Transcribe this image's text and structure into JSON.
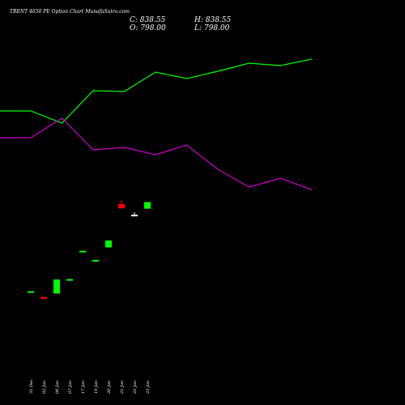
{
  "title": "TRENT 4650  PE Option  Chart MunafaSutra.com",
  "ohlc": {
    "close_label": "C: 838.55",
    "open_label": "O: 798.00",
    "high_label": "H: 838.55",
    "low_label": "L: 798.00"
  },
  "chart_data": {
    "type": "candlestick",
    "categories": [
      "31 Dec",
      "02 Jan",
      "06 Jan",
      "07 Jan",
      "17 Jan",
      "19 Jan",
      "20 Jan",
      "21 Jan",
      "22 Jan",
      "23 Jan"
    ],
    "candles": [
      {
        "open": 290,
        "high": 290,
        "low": 290,
        "close": 290,
        "color": "#00ff00"
      },
      {
        "open": 255,
        "high": 255,
        "low": 242,
        "close": 244,
        "color": "#ff0000"
      },
      {
        "open": 276,
        "high": 362,
        "low": 276,
        "close": 362,
        "color": "#00ff00"
      },
      {
        "open": 365,
        "high": 365,
        "low": 365,
        "close": 365,
        "color": "#00ff00"
      },
      {
        "open": 539,
        "high": 539,
        "low": 539,
        "close": 539,
        "color": "#00ff00"
      },
      {
        "open": 483,
        "high": 483,
        "low": 483,
        "close": 483,
        "color": "#00ff00"
      },
      {
        "open": 560,
        "high": 603,
        "low": 560,
        "close": 603,
        "color": "#00ff00"
      },
      {
        "open": 827,
        "high": 850,
        "low": 800,
        "close": 800,
        "color": "#ff0000"
      },
      {
        "open": 761,
        "high": 776,
        "low": 761,
        "close": 761,
        "color": "#ffffff"
      },
      {
        "open": 798,
        "high": 838.55,
        "low": 798,
        "close": 838.55,
        "color": "#00ff00"
      }
    ],
    "lines": [
      {
        "color": "#00ff00",
        "points": [
          {
            "x": -1,
            "y": 137
          },
          {
            "x": 0,
            "y": 137
          },
          {
            "x": 1,
            "y": 152
          },
          {
            "x": 2,
            "y": 112
          },
          {
            "x": 3,
            "y": 113
          },
          {
            "x": 4,
            "y": 89
          },
          {
            "x": 5,
            "y": 97
          },
          {
            "x": 6,
            "y": 88
          },
          {
            "x": 7,
            "y": 78
          },
          {
            "x": 8,
            "y": 81
          },
          {
            "x": 9,
            "y": 73
          }
        ]
      },
      {
        "color": "#cc00cc",
        "points": [
          {
            "x": -1,
            "y": 170
          },
          {
            "x": 0,
            "y": 170
          },
          {
            "x": 1,
            "y": 146
          },
          {
            "x": 2,
            "y": 185
          },
          {
            "x": 3,
            "y": 182
          },
          {
            "x": 4,
            "y": 191
          },
          {
            "x": 5,
            "y": 179
          },
          {
            "x": 6,
            "y": 209
          },
          {
            "x": 7,
            "y": 231
          },
          {
            "x": 8,
            "y": 220
          },
          {
            "x": 9,
            "y": 234
          }
        ]
      }
    ]
  }
}
